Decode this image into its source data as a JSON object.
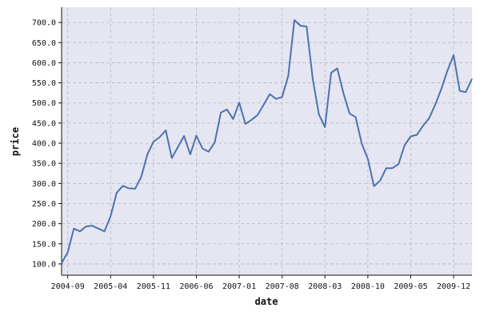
{
  "chart_data": {
    "type": "line",
    "title": "",
    "xlabel": "date",
    "ylabel": "price",
    "xlim": [
      "2004-08-01",
      "2010-03-01"
    ],
    "ylim": [
      72,
      738
    ],
    "grid": true,
    "colors": {
      "background": "#e5e6f1",
      "grid": "#b8b8c2",
      "line": "#4c72b0",
      "axis": "#111111"
    },
    "x_ticks": [
      {
        "value": "2004-09",
        "label": "2004-09"
      },
      {
        "value": "2005-04",
        "label": "2005-04"
      },
      {
        "value": "2005-11",
        "label": "2005-11"
      },
      {
        "value": "2006-06",
        "label": "2006-06"
      },
      {
        "value": "2007-01",
        "label": "2007-01"
      },
      {
        "value": "2007-08",
        "label": "2007-08"
      },
      {
        "value": "2008-03",
        "label": "2008-03"
      },
      {
        "value": "2008-10",
        "label": "2008-10"
      },
      {
        "value": "2009-05",
        "label": "2009-05"
      },
      {
        "value": "2009-12",
        "label": "2009-12"
      }
    ],
    "y_ticks": [
      {
        "value": 100,
        "label": "100.0"
      },
      {
        "value": 150,
        "label": "150.0"
      },
      {
        "value": 200,
        "label": "200.0"
      },
      {
        "value": 250,
        "label": "250.0"
      },
      {
        "value": 300,
        "label": "300.0"
      },
      {
        "value": 350,
        "label": "350.0"
      },
      {
        "value": 400,
        "label": "400.0"
      },
      {
        "value": 450,
        "label": "450.0"
      },
      {
        "value": 500,
        "label": "500.0"
      },
      {
        "value": 550,
        "label": "550.0"
      },
      {
        "value": 600,
        "label": "600.0"
      },
      {
        "value": 650,
        "label": "650.0"
      },
      {
        "value": 700,
        "label": "700.0"
      }
    ],
    "series": [
      {
        "x": [
          "2004-08",
          "2004-09",
          "2004-10",
          "2004-11",
          "2004-12",
          "2005-01",
          "2005-02",
          "2005-03",
          "2005-04",
          "2005-05",
          "2005-06",
          "2005-07",
          "2005-08",
          "2005-09",
          "2005-10",
          "2005-11",
          "2005-12",
          "2006-01",
          "2006-02",
          "2006-03",
          "2006-04",
          "2006-05",
          "2006-06",
          "2006-07",
          "2006-08",
          "2006-09",
          "2006-10",
          "2006-11",
          "2006-12",
          "2007-01",
          "2007-02",
          "2007-03",
          "2007-04",
          "2007-05",
          "2007-06",
          "2007-07",
          "2007-08",
          "2007-09",
          "2007-10",
          "2007-11",
          "2007-12",
          "2008-01",
          "2008-02",
          "2008-03",
          "2008-04",
          "2008-05",
          "2008-06",
          "2008-07",
          "2008-08",
          "2008-09",
          "2008-10",
          "2008-11",
          "2008-12",
          "2009-01",
          "2009-02",
          "2009-03",
          "2009-04",
          "2009-05",
          "2009-06",
          "2009-07",
          "2009-08",
          "2009-09",
          "2009-10",
          "2009-11",
          "2009-12",
          "2010-01",
          "2010-02",
          "2010-03"
        ],
        "values": [
          102,
          129,
          188,
          181,
          193,
          195,
          188,
          181,
          219,
          277,
          294,
          288,
          287,
          316,
          372,
          404,
          415,
          432,
          363,
          391,
          418,
          372,
          419,
          387,
          379,
          402,
          476,
          484,
          460,
          501,
          448,
          458,
          470,
          496,
          522,
          510,
          515,
          567,
          706,
          692,
          690,
          560,
          472,
          440,
          575,
          586,
          525,
          474,
          465,
          399,
          361,
          293,
          307,
          338,
          338,
          348,
          395,
          417,
          421,
          443,
          462,
          496,
          535,
          581,
          619,
          530,
          527,
          560
        ]
      }
    ]
  }
}
